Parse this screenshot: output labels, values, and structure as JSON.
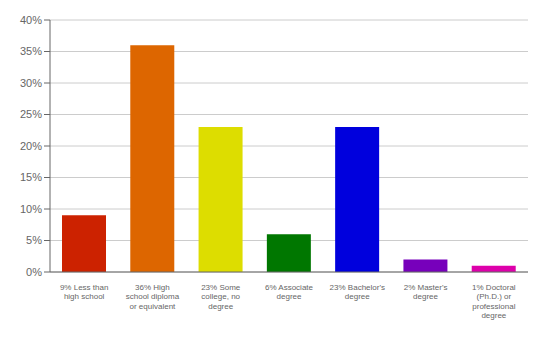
{
  "chart_data": {
    "type": "bar",
    "categories": [
      "9% Less than\nhigh school",
      "36% High\nschool diploma\nor equivalent",
      "23% Some\ncollege, no\ndegree",
      "6% Associate\ndegree",
      "23% Bachelor's\ndegree",
      "2% Master's\ndegree",
      "1% Doctoral\n(Ph.D.) or\nprofessional\ndegree"
    ],
    "values": [
      9,
      36,
      23,
      6,
      23,
      2,
      1
    ],
    "colors": [
      "#cc2200",
      "#dd6600",
      "#dddd00",
      "#007700",
      "#0000dd",
      "#7700bb",
      "#dd00aa"
    ],
    "ylim": [
      0,
      40
    ],
    "yticks": [
      {
        "value": 0,
        "label": "0%"
      },
      {
        "value": 5,
        "label": "5%"
      },
      {
        "value": 10,
        "label": "10%"
      },
      {
        "value": 15,
        "label": "15%"
      },
      {
        "value": 20,
        "label": "20%"
      },
      {
        "value": 25,
        "label": "25%"
      },
      {
        "value": 30,
        "label": "30%"
      },
      {
        "value": 35,
        "label": "35%"
      },
      {
        "value": 40,
        "label": "40%"
      }
    ],
    "grid": true
  }
}
